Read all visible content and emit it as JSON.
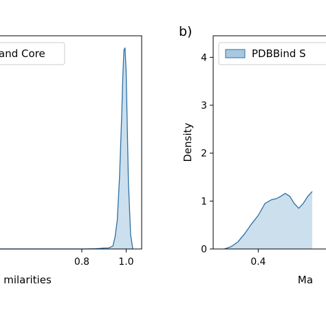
{
  "chart_data": [
    {
      "type": "area",
      "panel_label": "",
      "legend": {
        "text": "and Core",
        "placement": "top-left",
        "color": "#a8c8e0"
      },
      "xlabel": "milarities",
      "ylabel": "",
      "xlim": [
        0.4,
        1.07
      ],
      "ylim": [
        0,
        4.45
      ],
      "xticks": [
        {
          "v": 0.8,
          "label": "0.8"
        },
        {
          "v": 1.0,
          "label": "1.0"
        }
      ],
      "yticks": [],
      "series": [
        {
          "fill": "#c6dceb",
          "stroke": "#2b6fa5",
          "x": [
            0.4,
            0.8,
            0.86,
            0.88,
            0.9,
            0.92,
            0.94,
            0.95,
            0.96,
            0.97,
            0.98,
            0.985,
            0.99,
            0.995,
            1.0,
            1.005,
            1.01,
            1.02,
            1.03
          ],
          "y": [
            0.0,
            0.0,
            0.004,
            0.01,
            0.02,
            0.02,
            0.06,
            0.25,
            0.6,
            1.5,
            2.8,
            3.6,
            4.15,
            4.2,
            3.7,
            2.6,
            1.4,
            0.3,
            0.0
          ]
        }
      ]
    },
    {
      "type": "area",
      "panel_label": "b)",
      "legend": {
        "text": "PDBBind S",
        "placement": "top-left",
        "color": "#a8c8e0"
      },
      "xlabel": "Ma",
      "ylabel": "Density",
      "xlim": [
        0.2,
        0.75
      ],
      "ylim": [
        0,
        4.45
      ],
      "xticks": [
        {
          "v": 0.4,
          "label": "0.4"
        }
      ],
      "yticks": [
        {
          "v": 0,
          "label": "0"
        },
        {
          "v": 1,
          "label": "1"
        },
        {
          "v": 2,
          "label": "2"
        },
        {
          "v": 3,
          "label": "3"
        },
        {
          "v": 4,
          "label": "4"
        }
      ],
      "series": [
        {
          "fill": "#c6dceb",
          "stroke": "#2b6fa5",
          "x": [
            0.25,
            0.28,
            0.31,
            0.34,
            0.37,
            0.4,
            0.43,
            0.46,
            0.48,
            0.5,
            0.52,
            0.54,
            0.56,
            0.58,
            0.6,
            0.62,
            0.64
          ],
          "y": [
            0.0,
            0.05,
            0.15,
            0.32,
            0.52,
            0.7,
            0.95,
            1.03,
            1.05,
            1.1,
            1.16,
            1.1,
            0.95,
            0.85,
            0.95,
            1.1,
            1.2
          ]
        }
      ]
    }
  ]
}
